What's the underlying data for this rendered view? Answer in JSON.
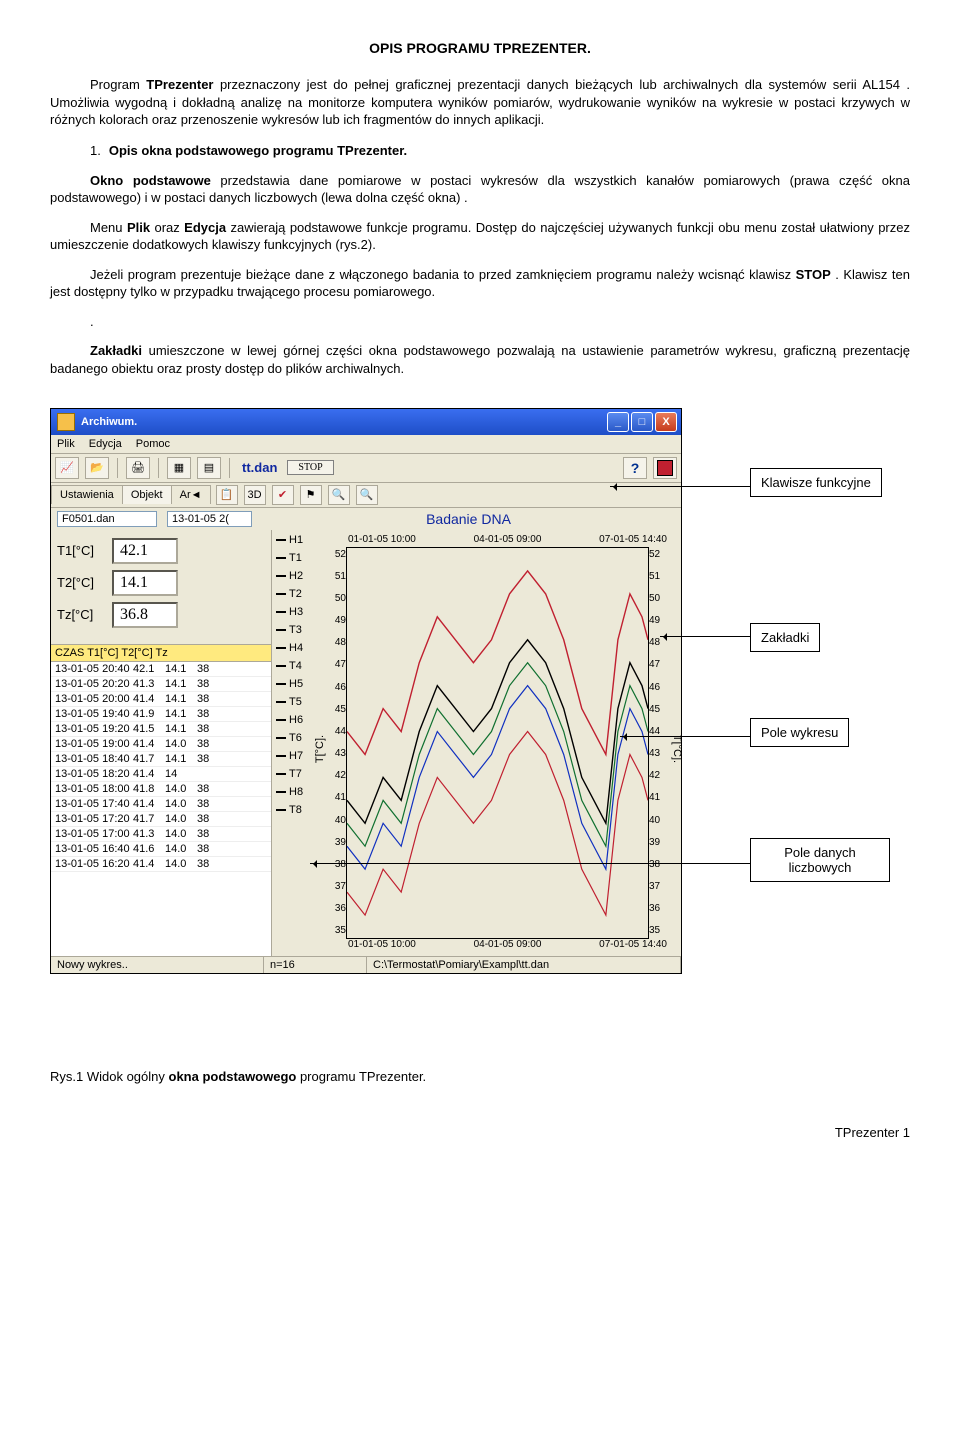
{
  "doc": {
    "title": "OPIS   PROGRAMU TPREZENTER.",
    "p1a": "Program ",
    "p1b": "TPrezenter",
    "p1c": " przeznaczony jest do pełnej graficznej prezentacji danych bieżących lub archiwalnych dla systemów serii AL154 . Umożliwia wygodną i dokładną analizę na monitorze komputera wyników pomiarów, wydrukowanie wyników na wykresie w postaci krzywych w różnych kolorach oraz przenoszenie wykresów lub ich fragmentów do innych aplikacji.",
    "li_num": "1.",
    "li_head": "Opis okna podstawowego programu TPrezenter.",
    "p2a": "Okno podstawowe",
    "p2b": " przedstawia dane pomiarowe w postaci wykresów  dla wszystkich kanałów pomiarowych (prawa część okna podstawowego) i w postaci danych liczbowych (lewa dolna część okna) .",
    "p3a": "Menu ",
    "p3b": "Plik",
    "p3c": "   oraz ",
    "p3d": "Edycja",
    "p3e": " zawierają podstawowe funkcje programu. Dostęp do najczęściej używanych funkcji obu menu został ułatwiony przez umieszczenie dodatkowych klawiszy funkcyjnych (rys.2).",
    "p4a": "Jeżeli program prezentuje bieżące dane z włączonego badania to przed zamknięciem programu należy wcisnąć klawisz ",
    "p4b": "STOP",
    "p4c": " . Klawisz ten jest dostępny tylko w przypadku trwającego procesu pomiarowego.",
    "p5": ".",
    "p6a": "Zakładki",
    "p6b": " umieszczone w lewej górnej części okna podstawowego pozwalają na ustawienie parametrów wykresu, graficzną prezentację badanego  obiektu oraz prosty dostęp do plików archiwalnych.",
    "caption": "Rys.1 Widok ogólny okna podstawowego programu TPrezenter.",
    "footer": "TPrezenter  1"
  },
  "window": {
    "title": "Archiwum.",
    "menu": [
      "Plik",
      "Edycja",
      "Pomoc"
    ],
    "filename": "tt.dan",
    "stop": "STOP",
    "tabs": [
      "Ustawienia",
      "Objekt",
      "Ar◄"
    ],
    "btn3d": "3D",
    "filebox": "F0501.dan",
    "datebox": "13-01-05 2(",
    "chart_title": "Badanie DNA",
    "readouts": [
      {
        "lbl": "T1[°C]",
        "val": "42.1"
      },
      {
        "lbl": "T2[°C]",
        "val": "14.1"
      },
      {
        "lbl": "Tz[°C]",
        "val": "36.8"
      }
    ],
    "table_header": "CZAS   T1[°C] T2[°C]  Tz",
    "rows": [
      [
        "13-01-05 20:40",
        "42.1",
        "14.1",
        "38"
      ],
      [
        "13-01-05 20:20",
        "41.3",
        "14.1",
        "38"
      ],
      [
        "13-01-05 20:00",
        "41.4",
        "14.1",
        "38"
      ],
      [
        "13-01-05 19:40",
        "41.9",
        "14.1",
        "38"
      ],
      [
        "13-01-05 19:20",
        "41.5",
        "14.1",
        "38"
      ],
      [
        "13-01-05 19:00",
        "41.4",
        "14.0",
        "38"
      ],
      [
        "13-01-05 18:40",
        "41.7",
        "14.1",
        "38"
      ],
      [
        "13-01-05 18:20",
        "41.4",
        "14",
        "  "
      ],
      [
        "13-01-05 18:00",
        "41.8",
        "14.0",
        "38"
      ],
      [
        "13-01-05 17:40",
        "41.4",
        "14.0",
        "38"
      ],
      [
        "13-01-05 17:20",
        "41.7",
        "14.0",
        "38"
      ],
      [
        "13-01-05 17:00",
        "41.3",
        "14.0",
        "38"
      ],
      [
        "13-01-05 16:40",
        "41.6",
        "14.0",
        "38"
      ],
      [
        "13-01-05 16:20",
        "41.4",
        "14.0",
        "38"
      ]
    ],
    "legend": [
      "H1",
      "T1",
      "H2",
      "T2",
      "H3",
      "T3",
      "H4",
      "T4",
      "H5",
      "T5",
      "H6",
      "T6",
      "H7",
      "T7",
      "H8",
      "T8"
    ],
    "x_ticks": [
      "01-01-05 10:00",
      "04-01-05 09:00",
      "07-01-05 14:40"
    ],
    "y_ticks": [
      "52",
      "51",
      "50",
      "49",
      "48",
      "47",
      "46",
      "45",
      "44",
      "43",
      "42",
      "41",
      "40",
      "39",
      "38",
      "37",
      "36",
      "35"
    ],
    "y_left_title": "T[°C].",
    "y_right_title": "T[°C].",
    "status": {
      "s1": "Nowy wykres..",
      "s2": "n=16",
      "s3": "C:\\Termostat\\Pomiary\\Exampl\\tt.dan"
    }
  },
  "chart": {
    "ylim_top": 52,
    "ylim_bottom": 35,
    "series": [
      {
        "color": "#c02030",
        "width": 1.4,
        "pts": [
          [
            0,
            44
          ],
          [
            6,
            43
          ],
          [
            12,
            45
          ],
          [
            18,
            44
          ],
          [
            24,
            47
          ],
          [
            30,
            49
          ],
          [
            36,
            48
          ],
          [
            42,
            47
          ],
          [
            48,
            48
          ],
          [
            54,
            50
          ],
          [
            60,
            51
          ],
          [
            66,
            50
          ],
          [
            72,
            48
          ],
          [
            78,
            45
          ],
          [
            82,
            44
          ],
          [
            86,
            43
          ],
          [
            90,
            48
          ],
          [
            94,
            50
          ],
          [
            98,
            49
          ],
          [
            100,
            48
          ]
        ]
      },
      {
        "color": "#000000",
        "width": 1.4,
        "pts": [
          [
            0,
            41
          ],
          [
            6,
            40
          ],
          [
            12,
            42
          ],
          [
            18,
            41
          ],
          [
            24,
            44
          ],
          [
            30,
            46
          ],
          [
            36,
            45
          ],
          [
            42,
            44
          ],
          [
            48,
            45
          ],
          [
            54,
            47
          ],
          [
            60,
            48
          ],
          [
            66,
            47
          ],
          [
            72,
            45
          ],
          [
            78,
            42
          ],
          [
            82,
            41
          ],
          [
            86,
            40
          ],
          [
            90,
            45
          ],
          [
            94,
            47
          ],
          [
            98,
            46
          ],
          [
            100,
            45
          ]
        ]
      },
      {
        "color": "#107030",
        "width": 1.2,
        "pts": [
          [
            0,
            40
          ],
          [
            6,
            39
          ],
          [
            12,
            41
          ],
          [
            18,
            40
          ],
          [
            24,
            43
          ],
          [
            30,
            45
          ],
          [
            36,
            44
          ],
          [
            42,
            43
          ],
          [
            48,
            44
          ],
          [
            54,
            46
          ],
          [
            60,
            47
          ],
          [
            66,
            46
          ],
          [
            72,
            44
          ],
          [
            78,
            41
          ],
          [
            82,
            40
          ],
          [
            86,
            39
          ],
          [
            90,
            44
          ],
          [
            94,
            46
          ],
          [
            98,
            45
          ],
          [
            100,
            44
          ]
        ]
      },
      {
        "color": "#1030c0",
        "width": 1.2,
        "pts": [
          [
            0,
            39
          ],
          [
            6,
            38
          ],
          [
            12,
            40
          ],
          [
            18,
            39
          ],
          [
            24,
            42
          ],
          [
            30,
            44
          ],
          [
            36,
            43
          ],
          [
            42,
            42
          ],
          [
            48,
            43
          ],
          [
            54,
            45
          ],
          [
            60,
            46
          ],
          [
            66,
            45
          ],
          [
            72,
            43
          ],
          [
            78,
            40
          ],
          [
            82,
            39
          ],
          [
            86,
            38
          ],
          [
            90,
            43
          ],
          [
            94,
            45
          ],
          [
            98,
            44
          ],
          [
            100,
            43
          ]
        ]
      },
      {
        "color": "#c02030",
        "width": 1.2,
        "pts": [
          [
            0,
            37
          ],
          [
            6,
            36
          ],
          [
            12,
            38
          ],
          [
            18,
            37
          ],
          [
            24,
            40
          ],
          [
            30,
            42
          ],
          [
            36,
            41
          ],
          [
            42,
            40
          ],
          [
            48,
            41
          ],
          [
            54,
            43
          ],
          [
            60,
            44
          ],
          [
            66,
            43
          ],
          [
            72,
            41
          ],
          [
            78,
            38
          ],
          [
            82,
            37
          ],
          [
            86,
            36
          ],
          [
            90,
            41
          ],
          [
            94,
            43
          ],
          [
            98,
            42
          ],
          [
            100,
            41
          ]
        ]
      }
    ]
  },
  "callouts": {
    "c1": "Klawisze funkcyjne",
    "c2": "Zakładki",
    "c3": "Pole wykresu",
    "c4": "Pole danych liczbowych"
  }
}
